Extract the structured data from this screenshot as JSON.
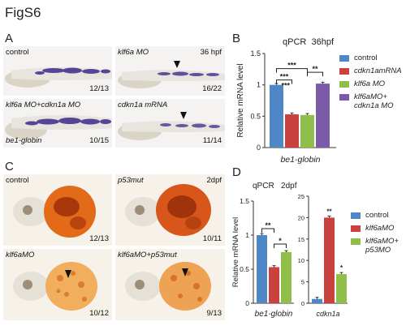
{
  "figure_title": "FigS6",
  "panels": {
    "A": {
      "letter": "A",
      "photos": [
        {
          "label": "control",
          "label2": "",
          "tag": "",
          "count": "12/13"
        },
        {
          "label": "klf6a MO",
          "label2": "",
          "tag": "36 hpf",
          "count": "16/22"
        },
        {
          "label": "klf6a MO+cdkn1a MO",
          "label2": "be1-globin",
          "tag": "",
          "count": "10/15"
        },
        {
          "label": "cdkn1a mRNA",
          "label2": "",
          "tag": "",
          "count": "11/14"
        }
      ]
    },
    "B": {
      "letter": "B",
      "title_left": "qPCR",
      "title_right": "36hpf",
      "legend": [
        {
          "label": "control",
          "color": "#4f86c6"
        },
        {
          "label": "cdkn1amRNA",
          "color": "#c9423d"
        },
        {
          "label": "klf6a MO",
          "color": "#8fbf4a"
        },
        {
          "label": "klf6aMO+",
          "label2": "cdkn1a MO",
          "color": "#7b5ba8"
        }
      ]
    },
    "C": {
      "letter": "C",
      "photos": [
        {
          "label": "control",
          "tag": "",
          "count": "12/13"
        },
        {
          "label": "p53mut",
          "tag": "2dpf",
          "count": "10/11"
        },
        {
          "label": "klf6aMO",
          "tag": "",
          "count": "10/12"
        },
        {
          "label": "klf6aMO+p53mut",
          "tag": "",
          "count": "9/13"
        }
      ]
    },
    "D": {
      "letter": "D",
      "title_left": "qPCR",
      "title_right": "2dpf",
      "legend": [
        {
          "label": "control",
          "color": "#4f86c6"
        },
        {
          "label": "klf6aMO",
          "color": "#c9423d"
        },
        {
          "label": "klf6aMO+",
          "label2": "p53MO",
          "color": "#8fbf4a"
        }
      ]
    }
  },
  "chart_data": [
    {
      "type": "bar",
      "title": "qPCR 36hpf",
      "ylabel": "Relative mRNA level",
      "xlabel": "be1-globin",
      "ylim": [
        0,
        1.5
      ],
      "yticks": [
        "0",
        "0.5",
        "1",
        "1.5"
      ],
      "series": [
        {
          "name": "control",
          "values": [
            1.0
          ]
        },
        {
          "name": "cdkn1amRNA",
          "values": [
            0.53
          ]
        },
        {
          "name": "klf6a MO",
          "values": [
            0.52
          ]
        },
        {
          "name": "klf6aMO+cdkn1a MO",
          "values": [
            1.02
          ]
        }
      ],
      "significance": [
        "***",
        "***",
        "***",
        "**"
      ]
    },
    {
      "type": "bar",
      "title": "qPCR 2dpf",
      "ylabel": "Relative mRNA level",
      "xlabel": "be1-globin",
      "ylim": [
        0,
        1.5
      ],
      "yticks": [
        "0",
        "0.5",
        "1",
        "1.5"
      ],
      "series": [
        {
          "name": "control",
          "values": [
            1.0
          ]
        },
        {
          "name": "klf6aMO",
          "values": [
            0.53
          ]
        },
        {
          "name": "klf6aMO+p53MO",
          "values": [
            0.75
          ]
        }
      ],
      "significance": [
        "**",
        "*"
      ]
    },
    {
      "type": "bar",
      "title": "",
      "ylabel": "",
      "xlabel": "cdkn1a",
      "ylim": [
        0,
        25
      ],
      "yticks": [
        "0",
        "5",
        "10",
        "15",
        "20",
        "25"
      ],
      "series": [
        {
          "name": "control",
          "values": [
            1.0
          ]
        },
        {
          "name": "klf6aMO",
          "values": [
            20.0
          ]
        },
        {
          "name": "klf6aMO+p53MO",
          "values": [
            6.8
          ]
        }
      ],
      "significance": [
        "**",
        "*"
      ]
    }
  ]
}
